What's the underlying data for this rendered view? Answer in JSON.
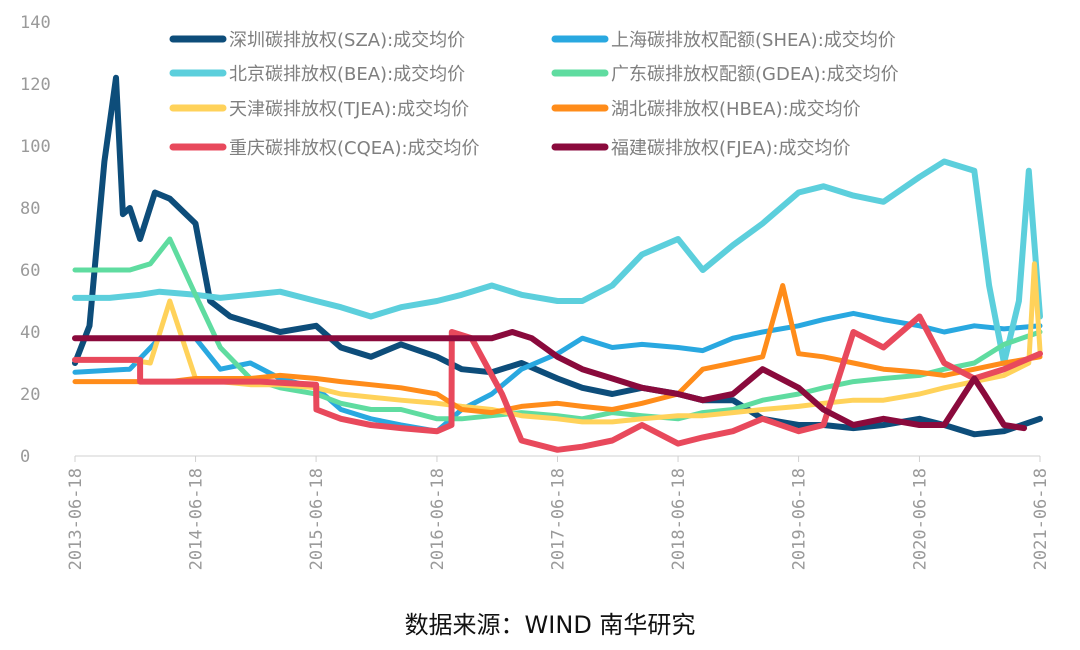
{
  "chart_data": {
    "type": "line",
    "title": "",
    "xlabel": "",
    "ylabel": "",
    "ylim": [
      0,
      140
    ],
    "yticks": [
      0,
      20,
      40,
      60,
      80,
      100,
      120,
      140
    ],
    "xticks": [
      "2013-06-18",
      "2014-06-18",
      "2015-06-18",
      "2016-06-18",
      "2017-06-18",
      "2018-06-18",
      "2019-06-18",
      "2020-06-18",
      "2021-06-18"
    ],
    "grid": false,
    "legend": "top",
    "source": "数据来源：WIND 南华研究",
    "series": [
      {
        "name": "深圳碳排放权(SZA):成交均价",
        "color": "#0d4d7a",
        "width": 6,
        "x": [
          "2013-06-18",
          "2013-08-01",
          "2013-09-15",
          "2013-10-20",
          "2013-11-10",
          "2013-12-01",
          "2014-01-01",
          "2014-02-15",
          "2014-04-01",
          "2014-06-18",
          "2014-08-01",
          "2014-10-01",
          "2015-01-01",
          "2015-03-01",
          "2015-06-18",
          "2015-09-01",
          "2015-12-01",
          "2016-03-01",
          "2016-06-18",
          "2016-09-01",
          "2016-12-01",
          "2017-03-01",
          "2017-06-18",
          "2017-09-01",
          "2017-12-01",
          "2018-03-01",
          "2018-06-18",
          "2018-09-01",
          "2018-12-01",
          "2019-03-01",
          "2019-06-18",
          "2019-09-01",
          "2019-12-01",
          "2020-03-01",
          "2020-06-18",
          "2020-09-01",
          "2020-12-01",
          "2021-03-01",
          "2021-06-18"
        ],
        "y": [
          30,
          42,
          95,
          122,
          78,
          80,
          70,
          85,
          83,
          75,
          50,
          45,
          42,
          40,
          42,
          35,
          32,
          36,
          32,
          28,
          27,
          30,
          25,
          22,
          20,
          22,
          20,
          18,
          18,
          12,
          10,
          10,
          9,
          10,
          12,
          10,
          7,
          8,
          12
        ]
      },
      {
        "name": "上海碳排放权配额(SHEA):成交均价",
        "color": "#29a8e0",
        "width": 5,
        "x": [
          "2013-06-18",
          "2013-12-01",
          "2014-03-01",
          "2014-06-18",
          "2014-09-01",
          "2014-12-01",
          "2015-03-01",
          "2015-06-18",
          "2015-09-01",
          "2015-12-01",
          "2016-03-01",
          "2016-06-18",
          "2016-09-01",
          "2016-12-01",
          "2017-03-01",
          "2017-06-18",
          "2017-09-01",
          "2017-12-01",
          "2018-03-01",
          "2018-06-18",
          "2018-09-01",
          "2018-12-01",
          "2019-03-01",
          "2019-06-18",
          "2019-09-01",
          "2019-12-01",
          "2020-03-01",
          "2020-06-18",
          "2020-09-01",
          "2020-12-01",
          "2021-03-01",
          "2021-06-18"
        ],
        "y": [
          27,
          28,
          38,
          38,
          28,
          30,
          25,
          22,
          15,
          12,
          10,
          8,
          15,
          20,
          28,
          33,
          38,
          35,
          36,
          35,
          34,
          38,
          40,
          42,
          44,
          46,
          44,
          42,
          40,
          42,
          41,
          42
        ]
      },
      {
        "name": "北京碳排放权(BEA):成交均价",
        "color": "#5ccfdc",
        "width": 6,
        "x": [
          "2013-06-18",
          "2013-10-01",
          "2014-01-01",
          "2014-03-01",
          "2014-06-18",
          "2014-09-01",
          "2014-12-01",
          "2015-03-01",
          "2015-06-18",
          "2015-09-01",
          "2015-12-01",
          "2016-03-01",
          "2016-06-18",
          "2016-09-01",
          "2016-12-01",
          "2017-03-01",
          "2017-06-18",
          "2017-09-01",
          "2017-12-01",
          "2018-03-01",
          "2018-06-18",
          "2018-09-01",
          "2018-12-01",
          "2019-03-01",
          "2019-06-18",
          "2019-09-01",
          "2019-12-01",
          "2020-03-01",
          "2020-06-18",
          "2020-09-01",
          "2020-12-01",
          "2021-01-15",
          "2021-03-01",
          "2021-04-15",
          "2021-05-15",
          "2021-06-18"
        ],
        "y": [
          51,
          51,
          52,
          53,
          52,
          51,
          52,
          53,
          50,
          48,
          45,
          48,
          50,
          52,
          55,
          52,
          50,
          50,
          55,
          65,
          70,
          60,
          68,
          75,
          85,
          87,
          84,
          82,
          90,
          95,
          92,
          55,
          30,
          50,
          92,
          45
        ]
      },
      {
        "name": "广东碳排放权配额(GDEA):成交均价",
        "color": "#5fdca0",
        "width": 5,
        "x": [
          "2013-06-18",
          "2013-12-01",
          "2014-02-01",
          "2014-04-01",
          "2014-06-18",
          "2014-09-01",
          "2014-12-01",
          "2015-03-01",
          "2015-06-18",
          "2015-09-01",
          "2015-12-01",
          "2016-03-01",
          "2016-06-18",
          "2016-09-01",
          "2016-12-01",
          "2017-03-01",
          "2017-06-18",
          "2017-09-01",
          "2017-12-01",
          "2018-03-01",
          "2018-06-18",
          "2018-09-01",
          "2018-12-01",
          "2019-03-01",
          "2019-06-18",
          "2019-09-01",
          "2019-12-01",
          "2020-03-01",
          "2020-06-18",
          "2020-09-01",
          "2020-12-01",
          "2021-03-01",
          "2021-06-18"
        ],
        "y": [
          60,
          60,
          62,
          70,
          52,
          35,
          25,
          22,
          20,
          17,
          15,
          15,
          12,
          12,
          13,
          14,
          13,
          12,
          14,
          13,
          12,
          14,
          15,
          18,
          20,
          22,
          24,
          25,
          26,
          28,
          30,
          36,
          40
        ]
      },
      {
        "name": "天津碳排放权(TJEA):成交均价",
        "color": "#ffd25a",
        "width": 5,
        "x": [
          "2013-06-18",
          "2013-12-01",
          "2014-02-01",
          "2014-04-01",
          "2014-06-18",
          "2014-09-01",
          "2014-12-01",
          "2015-03-01",
          "2015-06-18",
          "2015-09-01",
          "2015-12-01",
          "2016-03-01",
          "2016-06-18",
          "2016-09-01",
          "2016-12-01",
          "2017-03-01",
          "2017-06-18",
          "2017-09-01",
          "2017-12-01",
          "2018-03-01",
          "2018-06-18",
          "2018-09-01",
          "2018-12-01",
          "2019-03-01",
          "2019-06-18",
          "2019-09-01",
          "2019-12-01",
          "2020-03-01",
          "2020-06-18",
          "2020-09-01",
          "2020-12-01",
          "2021-03-01",
          "2021-05-15",
          "2021-06-01",
          "2021-06-18"
        ],
        "y": [
          31,
          31,
          30,
          50,
          25,
          24,
          23,
          23,
          22,
          20,
          19,
          18,
          17,
          16,
          15,
          13,
          12,
          11,
          11,
          12,
          13,
          13,
          14,
          15,
          16,
          17,
          18,
          18,
          20,
          22,
          24,
          26,
          30,
          62,
          34
        ]
      },
      {
        "name": "湖北碳排放权(HBEA):成交均价",
        "color": "#ff8c1a",
        "width": 5,
        "x": [
          "2013-06-18",
          "2014-04-02",
          "2014-06-18",
          "2014-09-01",
          "2014-12-01",
          "2015-03-01",
          "2015-06-18",
          "2015-09-01",
          "2015-12-01",
          "2016-03-01",
          "2016-06-18",
          "2016-09-01",
          "2016-12-01",
          "2017-03-01",
          "2017-06-18",
          "2017-09-01",
          "2017-12-01",
          "2018-03-01",
          "2018-06-18",
          "2018-09-01",
          "2018-12-01",
          "2019-03-01",
          "2019-05-01",
          "2019-06-18",
          "2019-09-01",
          "2019-12-01",
          "2020-03-01",
          "2020-06-18",
          "2020-09-01",
          "2020-12-01",
          "2021-03-01",
          "2021-06-18"
        ],
        "y": [
          24,
          24,
          25,
          25,
          25,
          26,
          25,
          24,
          23,
          22,
          20,
          15,
          14,
          16,
          17,
          16,
          15,
          17,
          20,
          28,
          30,
          32,
          55,
          33,
          32,
          30,
          28,
          27,
          26,
          28,
          30,
          32
        ]
      },
      {
        "name": "重庆碳排放权(CQEA):成交均价",
        "color": "#e8495c",
        "width": 6,
        "x": [
          "2013-06-18",
          "2014-01-01",
          "2014-01-01",
          "2014-06-18",
          "2015-01-01",
          "2015-06-18",
          "2015-06-19",
          "2015-09-01",
          "2015-12-01",
          "2016-03-01",
          "2016-06-18",
          "2016-08-01",
          "2016-08-02",
          "2016-10-01",
          "2017-01-01",
          "2017-03-01",
          "2017-06-18",
          "2017-09-01",
          "2017-12-01",
          "2018-03-01",
          "2018-06-18",
          "2018-09-01",
          "2018-12-01",
          "2019-03-01",
          "2019-06-18",
          "2019-09-01",
          "2019-12-01",
          "2020-03-01",
          "2020-06-18",
          "2020-09-01",
          "2020-12-01",
          "2021-03-01",
          "2021-06-18"
        ],
        "y": [
          31,
          31,
          24,
          24,
          24,
          23,
          15,
          12,
          10,
          9,
          8,
          10,
          40,
          38,
          20,
          5,
          2,
          3,
          5,
          10,
          4,
          6,
          8,
          12,
          8,
          10,
          40,
          35,
          45,
          30,
          25,
          28,
          33
        ]
      },
      {
        "name": "福建碳排放权(FJEA):成交均价",
        "color": "#8a0a3c",
        "width": 6,
        "x": [
          "2013-06-18",
          "2016-12-01",
          "2017-02-01",
          "2017-04-01",
          "2017-06-18",
          "2017-09-01",
          "2017-12-01",
          "2018-03-01",
          "2018-06-18",
          "2018-09-01",
          "2018-12-01",
          "2019-03-01",
          "2019-06-18",
          "2019-09-01",
          "2019-12-01",
          "2020-03-01",
          "2020-06-18",
          "2020-09-01",
          "2020-12-01",
          "2021-01-01",
          "2021-03-01",
          "2021-05-01"
        ],
        "y": [
          38,
          38,
          40,
          38,
          32,
          28,
          25,
          22,
          20,
          18,
          20,
          28,
          22,
          15,
          10,
          12,
          10,
          10,
          25,
          20,
          10,
          9
        ]
      }
    ]
  }
}
